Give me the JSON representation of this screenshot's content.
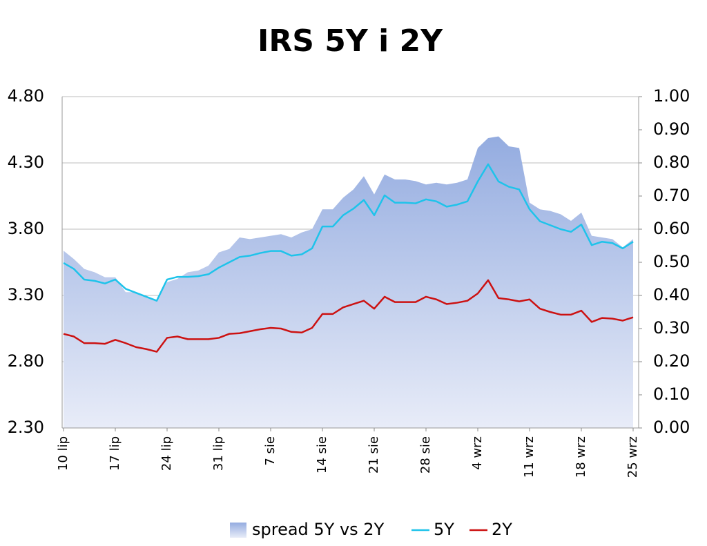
{
  "chart_data": {
    "type": "line",
    "title": "IRS 5Y i 2Y",
    "categories": [
      "10 lip",
      null,
      null,
      null,
      null,
      "17 lip",
      null,
      null,
      null,
      null,
      "24 lip",
      null,
      null,
      null,
      null,
      "31 lip",
      null,
      null,
      null,
      null,
      "7 sie",
      null,
      null,
      null,
      null,
      "14 sie",
      null,
      null,
      null,
      null,
      "21 sie",
      null,
      null,
      null,
      null,
      "28 sie",
      null,
      null,
      null,
      null,
      "4 wrz",
      null,
      null,
      null,
      null,
      "11 wrz",
      null,
      null,
      null,
      null,
      "18 wrz",
      null,
      null,
      null,
      null,
      "25 wrz"
    ],
    "series": [
      {
        "name": "spread 5Y vs 2Y",
        "type": "area",
        "axis": "y2",
        "color": "#9db3e3",
        "values": [
          0.535,
          0.51,
          0.48,
          0.47,
          0.455,
          0.455,
          0.41,
          0.41,
          0.395,
          0.385,
          0.44,
          0.45,
          0.47,
          0.475,
          0.49,
          0.53,
          0.54,
          0.575,
          0.57,
          0.575,
          0.58,
          0.585,
          0.575,
          0.59,
          0.6,
          0.66,
          0.66,
          0.695,
          0.72,
          0.76,
          0.705,
          0.765,
          0.75,
          0.75,
          0.745,
          0.735,
          0.74,
          0.735,
          0.74,
          0.75,
          0.845,
          0.875,
          0.88,
          0.85,
          0.845,
          0.68,
          0.66,
          0.655,
          0.645,
          0.625,
          0.65,
          0.58,
          0.575,
          0.57,
          0.545,
          0.57
        ]
      },
      {
        "name": "5Y",
        "type": "line",
        "color": "#1ec3ea",
        "values": [
          3.545,
          3.5,
          3.42,
          3.41,
          3.39,
          3.42,
          3.35,
          3.32,
          3.29,
          3.26,
          3.42,
          3.44,
          3.44,
          3.445,
          3.46,
          3.51,
          3.55,
          3.59,
          3.6,
          3.62,
          3.635,
          3.635,
          3.6,
          3.61,
          3.655,
          3.82,
          3.82,
          3.905,
          3.955,
          4.02,
          3.905,
          4.055,
          4.0,
          4.0,
          3.995,
          4.025,
          4.01,
          3.97,
          3.985,
          4.01,
          4.16,
          4.29,
          4.16,
          4.12,
          4.1,
          3.95,
          3.86,
          3.83,
          3.8,
          3.78,
          3.835,
          3.68,
          3.705,
          3.695,
          3.655,
          3.705
        ]
      },
      {
        "name": "2Y",
        "type": "line",
        "color": "#cc1111",
        "values": [
          3.01,
          2.99,
          2.94,
          2.94,
          2.935,
          2.965,
          2.94,
          2.91,
          2.895,
          2.875,
          2.98,
          2.99,
          2.97,
          2.97,
          2.97,
          2.98,
          3.01,
          3.015,
          3.03,
          3.045,
          3.055,
          3.05,
          3.025,
          3.02,
          3.055,
          3.16,
          3.16,
          3.21,
          3.235,
          3.26,
          3.2,
          3.29,
          3.25,
          3.25,
          3.25,
          3.29,
          3.27,
          3.235,
          3.245,
          3.26,
          3.315,
          3.415,
          3.28,
          3.27,
          3.255,
          3.27,
          3.2,
          3.175,
          3.155,
          3.155,
          3.185,
          3.1,
          3.13,
          3.125,
          3.11,
          3.135
        ]
      }
    ],
    "ylim": [
      2.3,
      4.8
    ],
    "yticks": [
      {
        "value": 2.3,
        "label": "2.30"
      },
      {
        "value": 2.8,
        "label": "2.80"
      },
      {
        "value": 3.3,
        "label": "3.30"
      },
      {
        "value": 3.8,
        "label": "3.80"
      },
      {
        "value": 4.3,
        "label": "4.30"
      },
      {
        "value": 4.8,
        "label": "4.80"
      }
    ],
    "y2lim": [
      0,
      1
    ],
    "y2ticks": [
      {
        "value": 0,
        "label": "0.00"
      },
      {
        "value": 0.1,
        "label": "0.10"
      },
      {
        "value": 0.2,
        "label": "0.20"
      },
      {
        "value": 0.3,
        "label": "0.30"
      },
      {
        "value": 0.4,
        "label": "0.40"
      },
      {
        "value": 0.5,
        "label": "0.50"
      },
      {
        "value": 0.6,
        "label": "0.60"
      },
      {
        "value": 0.7,
        "label": "0.70"
      },
      {
        "value": 0.8,
        "label": "0.80"
      },
      {
        "value": 0.9,
        "label": "0.90"
      },
      {
        "value": 1,
        "label": "1.00"
      }
    ],
    "grid": true,
    "legend": "bottom"
  }
}
